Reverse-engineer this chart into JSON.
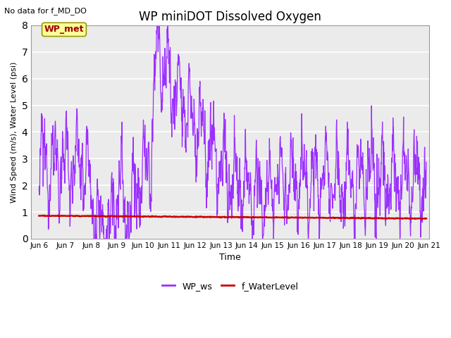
{
  "title": "WP miniDOT Dissolved Oxygen",
  "top_left_text": "No data for f_MD_DO",
  "xlabel": "Time",
  "ylabel": "Wind Speed (m/s), Water Level (psi)",
  "ylim": [
    0.0,
    8.0
  ],
  "yticks": [
    0.0,
    1.0,
    2.0,
    3.0,
    4.0,
    5.0,
    6.0,
    7.0,
    8.0
  ],
  "x_start_day": 5.7,
  "x_end_day": 21.0,
  "xtick_labels": [
    "Jun 6",
    "Jun 7",
    "Jun 8",
    "Jun 9",
    "Jun 10",
    "Jun 11",
    "Jun 12",
    "Jun 13",
    "Jun 14",
    "Jun 15",
    "Jun 16",
    "Jun 17",
    "Jun 18",
    "Jun 19",
    "Jun 20",
    "Jun 21"
  ],
  "xtick_positions": [
    6,
    7,
    8,
    9,
    10,
    11,
    12,
    13,
    14,
    15,
    16,
    17,
    18,
    19,
    20,
    21
  ],
  "wp_ws_color": "#9B30FF",
  "f_waterlevel_color": "#CC0000",
  "legend_label_ws": "WP_ws",
  "legend_label_wl": "f_WaterLevel",
  "wp_met_box_facecolor": "#FFFF99",
  "wp_met_box_edgecolor": "#999900",
  "wp_met_text_color": "#990000",
  "background_color": "#EBEBEB",
  "grid_color": "white"
}
